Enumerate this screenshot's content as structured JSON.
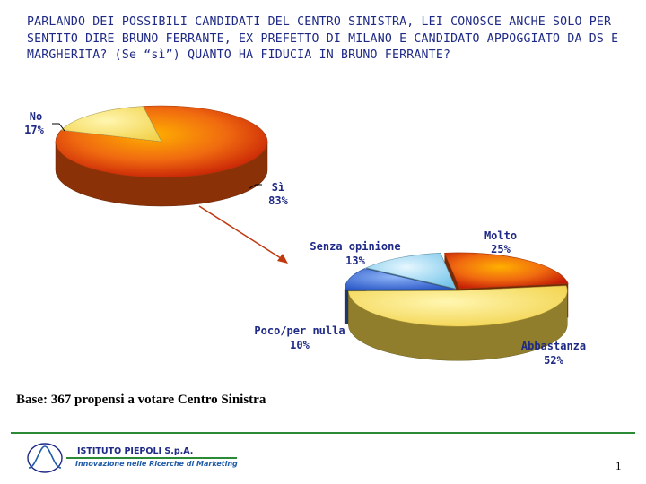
{
  "title": "PARLANDO DEI POSSIBILI CANDIDATI DEL CENTRO SINISTRA, LEI CONOSCE ANCHE SOLO PER SENTITO DIRE BRUNO FERRANTE, EX PREFETTO DI MILANO E CANDIDATO APPOGGIATO DA DS E MARGHERITA? (Se “sì”) QUANTO HA FIDUCIA IN BRUNO FERRANTE?",
  "chart_data": [
    {
      "type": "pie",
      "title": "",
      "categories": [
        "Sì",
        "No"
      ],
      "values": [
        83,
        17
      ],
      "value_labels": [
        "83%",
        "17%"
      ],
      "colors": [
        "#e8520e",
        "#f2e07a"
      ]
    },
    {
      "type": "pie",
      "title": "",
      "categories": [
        "Molto",
        "Abbastanza",
        "Poco/per nulla",
        "Senza opinione"
      ],
      "values": [
        25,
        52,
        10,
        13
      ],
      "value_labels": [
        "25%",
        "52%",
        "10%",
        "13%"
      ],
      "colors": [
        "#e8520e",
        "#f2d24a",
        "#3a6fd0",
        "#8fd0ec"
      ]
    }
  ],
  "base_note": "Base: 367 propensi a votare Centro Sinistra",
  "logo": {
    "name": "ISTITUTO PIEPOLI S.p.A.",
    "tagline": "Innovazione nelle Ricerche di Marketing"
  },
  "page_number": "1",
  "colors": {
    "title": "#1f2a86",
    "arrow": "#c0390f",
    "rule": "#2a8a35"
  }
}
